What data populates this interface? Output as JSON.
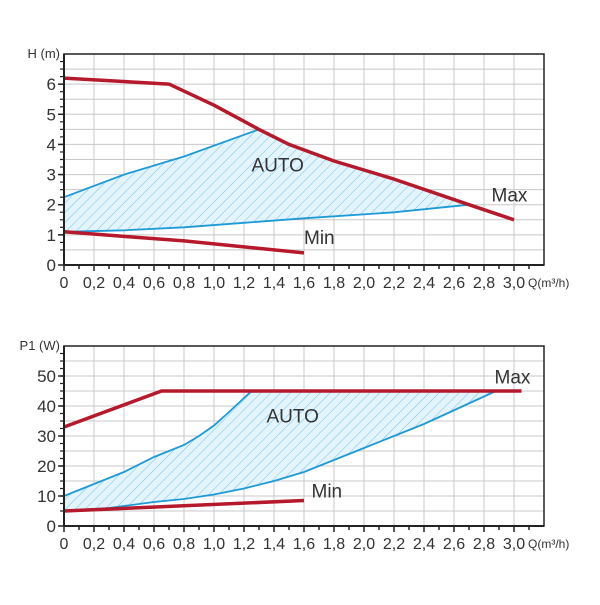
{
  "colors": {
    "max_min": "#b5192b",
    "auto": "#1e9ad6",
    "grid": "#c8c8c8",
    "axis": "#222222"
  },
  "chart_data": [
    {
      "type": "line",
      "title": "",
      "ylabel": "H (m)",
      "xlabel": "Q(m³/h)",
      "xlim": [
        0,
        3.2
      ],
      "ylim": [
        0,
        7
      ],
      "x_ticks": [
        0,
        0.2,
        0.4,
        0.6,
        0.8,
        1.0,
        1.2,
        1.4,
        1.6,
        1.8,
        2.0,
        2.2,
        2.4,
        2.6,
        2.8,
        3.0
      ],
      "x_tick_labels": [
        "0",
        "0,2",
        "0,4",
        "0,6",
        "0,8",
        "1,0",
        "1,2",
        "1,4",
        "1,6",
        "1,8",
        "2,0",
        "2,2",
        "2,4",
        "2,6",
        "2,8",
        "3,0"
      ],
      "y_ticks": [
        0,
        1,
        2,
        3,
        4,
        5,
        6
      ],
      "y_tick_labels": [
        "0",
        "1",
        "2",
        "3",
        "4",
        "5",
        "6"
      ],
      "grid": true,
      "series": [
        {
          "name": "Max",
          "points": [
            [
              0,
              6.2
            ],
            [
              0.7,
              6.0
            ],
            [
              1.0,
              5.3
            ],
            [
              1.3,
              4.5
            ],
            [
              1.5,
              4.0
            ],
            [
              1.8,
              3.45
            ],
            [
              2.2,
              2.85
            ],
            [
              2.7,
              2.0
            ],
            [
              3.0,
              1.5
            ]
          ],
          "label_at": [
            2.85,
            2.1
          ]
        },
        {
          "name": "Min",
          "points": [
            [
              0,
              1.1
            ],
            [
              0.4,
              0.95
            ],
            [
              0.8,
              0.8
            ],
            [
              1.2,
              0.6
            ],
            [
              1.6,
              0.4
            ]
          ],
          "label_at": [
            1.6,
            0.7
          ]
        },
        {
          "name": "AUTO",
          "upper": [
            [
              0,
              2.25
            ],
            [
              0.4,
              3.0
            ],
            [
              0.8,
              3.6
            ],
            [
              1.3,
              4.5
            ],
            [
              1.5,
              4.0
            ],
            [
              1.8,
              3.45
            ],
            [
              2.2,
              2.85
            ],
            [
              2.7,
              2.0
            ]
          ],
          "upper_drawn": [
            [
              0,
              2.25
            ],
            [
              0.4,
              3.0
            ],
            [
              0.8,
              3.6
            ],
            [
              1.3,
              4.5
            ]
          ],
          "lower": [
            [
              0,
              1.1
            ],
            [
              0.4,
              1.15
            ],
            [
              0.8,
              1.25
            ],
            [
              1.2,
              1.4
            ],
            [
              1.6,
              1.55
            ],
            [
              2.2,
              1.75
            ],
            [
              2.7,
              2.0
            ]
          ],
          "label_at": [
            1.25,
            3.1
          ]
        }
      ]
    },
    {
      "type": "line",
      "title": "",
      "ylabel": "P1 (W)",
      "xlabel": "Q(m³/h)",
      "xlim": [
        0,
        3.2
      ],
      "ylim": [
        0,
        60
      ],
      "x_ticks": [
        0,
        0.2,
        0.4,
        0.6,
        0.8,
        1.0,
        1.2,
        1.4,
        1.6,
        1.8,
        2.0,
        2.2,
        2.4,
        2.6,
        2.8,
        3.0
      ],
      "x_tick_labels": [
        "0",
        "0,2",
        "0,4",
        "0,6",
        "0,8",
        "1,0",
        "1,2",
        "1,4",
        "1,6",
        "1,8",
        "2,0",
        "2,2",
        "2,4",
        "2,6",
        "2,8",
        "3,0"
      ],
      "y_ticks": [
        0,
        10,
        20,
        30,
        40,
        50
      ],
      "y_tick_labels": [
        "0",
        "10",
        "20",
        "30",
        "40",
        "50"
      ],
      "grid": true,
      "series": [
        {
          "name": "Max",
          "points": [
            [
              0,
              33
            ],
            [
              0.65,
              45
            ],
            [
              3.05,
              45
            ]
          ],
          "label_at": [
            2.87,
            47.5
          ]
        },
        {
          "name": "Min",
          "points": [
            [
              0,
              5
            ],
            [
              1.6,
              8.5
            ]
          ],
          "label_at": [
            1.65,
            9.5
          ]
        },
        {
          "name": "AUTO",
          "upper": [
            [
              0,
              10
            ],
            [
              0.4,
              18
            ],
            [
              0.6,
              23
            ],
            [
              0.8,
              27
            ],
            [
              0.9,
              30
            ],
            [
              1.0,
              33.5
            ],
            [
              1.1,
              38
            ],
            [
              1.25,
              45
            ],
            [
              2.88,
              45
            ]
          ],
          "upper_drawn": [
            [
              0,
              10
            ],
            [
              0.4,
              18
            ],
            [
              0.6,
              23
            ],
            [
              0.8,
              27
            ],
            [
              0.9,
              30
            ],
            [
              1.0,
              33.5
            ],
            [
              1.1,
              38
            ],
            [
              1.25,
              45
            ]
          ],
          "lower": [
            [
              0,
              5
            ],
            [
              0.3,
              6
            ],
            [
              0.6,
              8
            ],
            [
              0.8,
              9
            ],
            [
              1.0,
              10.5
            ],
            [
              1.2,
              12.5
            ],
            [
              1.4,
              15
            ],
            [
              1.6,
              18
            ],
            [
              2.0,
              26
            ],
            [
              2.2,
              30
            ],
            [
              2.4,
              34
            ],
            [
              2.88,
              45
            ]
          ],
          "label_at": [
            1.35,
            34.5
          ]
        }
      ]
    }
  ]
}
